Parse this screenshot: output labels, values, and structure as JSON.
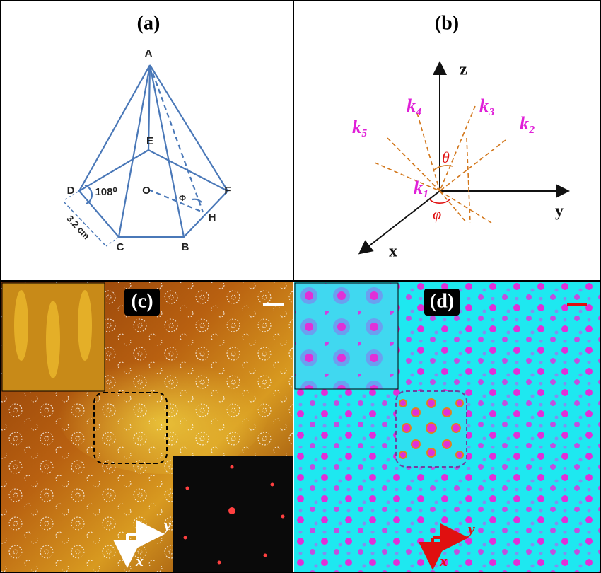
{
  "panels": {
    "a": {
      "label": "(a)",
      "points": {
        "A": "A",
        "B": "B",
        "C": "C",
        "D": "D",
        "E": "E",
        "F": "F",
        "H": "H",
        "O": "O"
      },
      "angle": "108⁰",
      "phi": "Φ",
      "length": "3.2 cm"
    },
    "b": {
      "label": "(b)",
      "axes": {
        "z": "z",
        "y": "y",
        "x": "x"
      },
      "waves": [
        "k₁",
        "k₂",
        "k₃",
        "k₄",
        "k₅"
      ],
      "theta": "θ",
      "varphi": "φ"
    },
    "c": {
      "label": "(c)",
      "axes": {
        "y": "y",
        "x": "x"
      }
    },
    "d": {
      "label": "(d)",
      "axes": {
        "y": "y",
        "x": "x"
      }
    }
  }
}
